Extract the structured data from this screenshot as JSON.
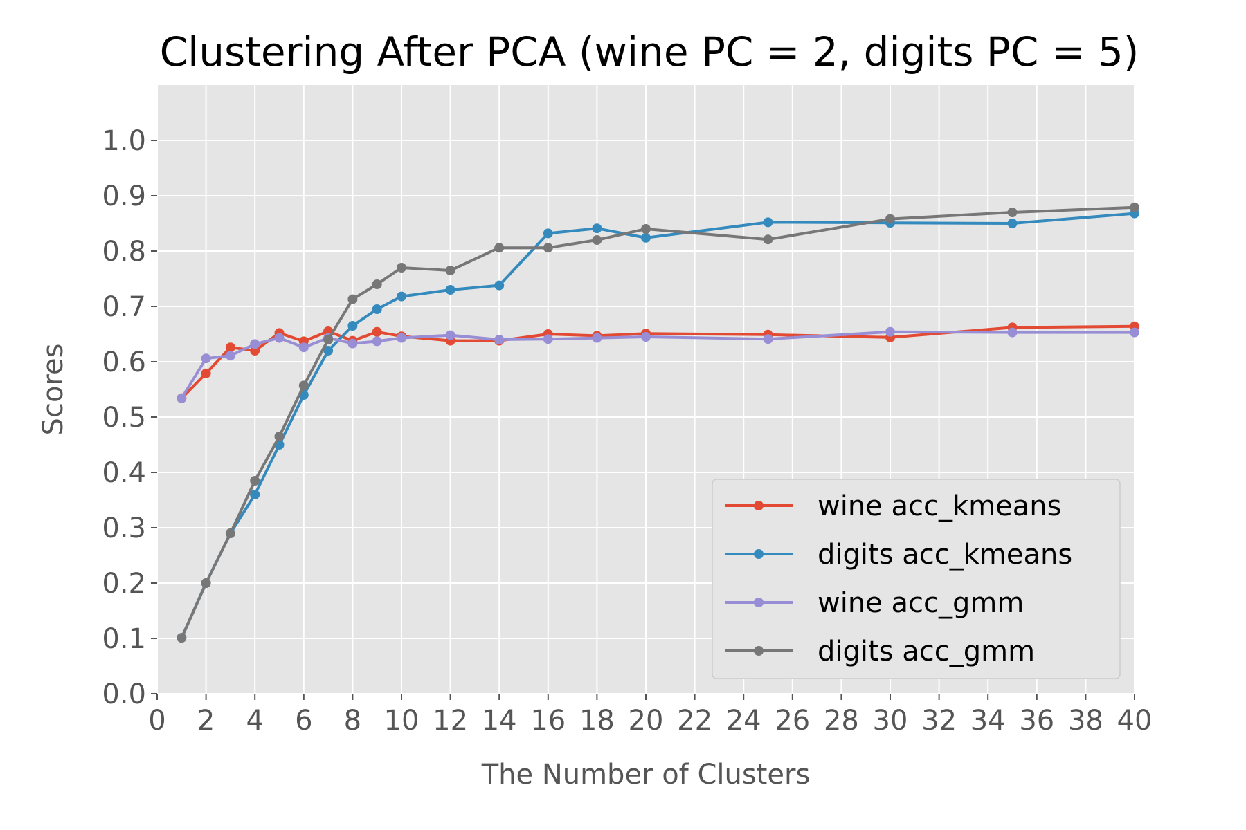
{
  "chart_data": {
    "type": "line",
    "title": "Clustering After PCA (wine PC = 2, digits PC = 5)",
    "xlabel": "The Number of Clusters",
    "ylabel": "Scores",
    "xlim": [
      0,
      40
    ],
    "ylim": [
      0.0,
      1.1
    ],
    "x_ticks": [
      0,
      2,
      4,
      6,
      8,
      10,
      12,
      14,
      16,
      18,
      20,
      22,
      24,
      26,
      28,
      30,
      32,
      34,
      36,
      38,
      40
    ],
    "y_ticks": [
      0.0,
      0.1,
      0.2,
      0.3,
      0.4,
      0.5,
      0.6,
      0.7,
      0.8,
      0.9,
      1.0
    ],
    "grid": true,
    "legend_position": "lower-right",
    "x": [
      1,
      2,
      3,
      4,
      5,
      6,
      7,
      8,
      9,
      10,
      12,
      14,
      16,
      18,
      20,
      25,
      30,
      35,
      40
    ],
    "series": [
      {
        "name": "wine acc_kmeans",
        "color": "#E24A33",
        "values": [
          0.534,
          0.579,
          0.626,
          0.62,
          0.652,
          0.637,
          0.655,
          0.638,
          0.654,
          0.646,
          0.638,
          0.638,
          0.65,
          0.647,
          0.651,
          0.649,
          0.644,
          0.662,
          0.664
        ]
      },
      {
        "name": "digits acc_kmeans",
        "color": "#348ABD",
        "values": [
          0.101,
          0.2,
          0.29,
          0.36,
          0.45,
          0.54,
          0.62,
          0.665,
          0.695,
          0.718,
          0.73,
          0.738,
          0.832,
          0.841,
          0.824,
          0.852,
          0.851,
          0.85,
          0.868
        ]
      },
      {
        "name": "wine acc_gmm",
        "color": "#988ED5",
        "values": [
          0.534,
          0.606,
          0.611,
          0.632,
          0.643,
          0.626,
          0.643,
          0.633,
          0.637,
          0.643,
          0.648,
          0.64,
          0.641,
          0.643,
          0.645,
          0.641,
          0.654,
          0.653,
          0.653
        ]
      },
      {
        "name": "digits acc_gmm",
        "color": "#777777",
        "values": [
          0.101,
          0.2,
          0.29,
          0.385,
          0.465,
          0.557,
          0.64,
          0.713,
          0.74,
          0.77,
          0.765,
          0.806,
          0.806,
          0.82,
          0.84,
          0.821,
          0.858,
          0.87,
          0.879
        ]
      }
    ]
  },
  "colors": {
    "plot_background": "#E5E5E5",
    "grid": "#FFFFFF",
    "tick_text": "#555555",
    "title_text": "#000000"
  }
}
